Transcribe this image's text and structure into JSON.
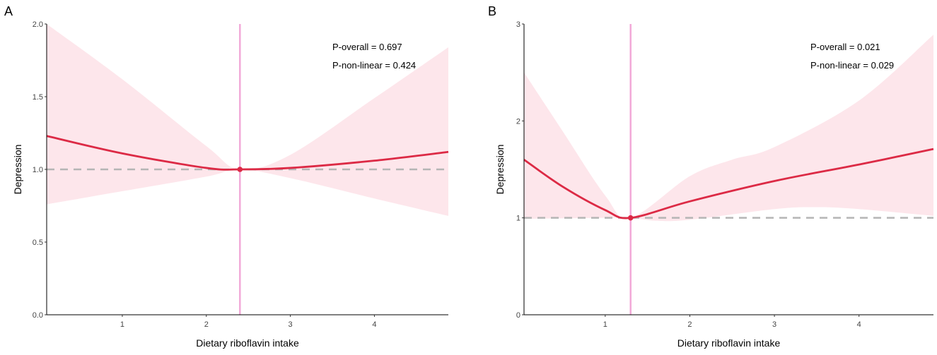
{
  "colors": {
    "curve": "#dc2a45",
    "band": "#fde6eb",
    "vline": "#f2a9d8",
    "ref": "#b5b5b5",
    "axis": "#000000"
  },
  "chart_data": [
    {
      "type": "line",
      "panel_label": "A",
      "xlabel": "Dietary riboflavin intake",
      "ylabel": "Depression",
      "xlim": [
        0.1,
        4.88
      ],
      "ylim": [
        0,
        2.0
      ],
      "xticks": [
        "1",
        "2",
        "3",
        "4"
      ],
      "xtick_values": [
        1,
        2,
        3,
        4
      ],
      "yticks": [
        "0.0",
        "0.5",
        "1.0",
        "1.5",
        "2.0"
      ],
      "ytick_values": [
        0,
        0.5,
        1.0,
        1.5,
        2.0
      ],
      "reference_y": 1.0,
      "reference_x": 2.4,
      "annotations": [
        "P-overall = 0.697",
        "P-non-linear = 0.424"
      ],
      "series": [
        {
          "name": "estimate",
          "x": [
            0.1,
            1.0,
            2.0,
            2.4,
            3.0,
            4.0,
            4.88
          ],
          "y": [
            1.23,
            1.11,
            1.01,
            1.0,
            1.01,
            1.06,
            1.12
          ]
        },
        {
          "name": "upper_ci",
          "x": [
            0.1,
            1.0,
            2.0,
            2.4,
            3.0,
            4.0,
            4.88
          ],
          "y": [
            2.0,
            1.62,
            1.16,
            1.0,
            1.1,
            1.49,
            1.84
          ]
        },
        {
          "name": "lower_ci",
          "x": [
            0.1,
            1.0,
            2.0,
            2.4,
            3.0,
            4.0,
            4.88
          ],
          "y": [
            0.76,
            0.85,
            0.95,
            1.0,
            0.94,
            0.8,
            0.68
          ]
        }
      ]
    },
    {
      "type": "line",
      "panel_label": "B",
      "xlabel": "Dietary riboflavin intake",
      "ylabel": "Depression",
      "xlim": [
        0.04,
        4.88
      ],
      "ylim": [
        0,
        3
      ],
      "xticks": [
        "1",
        "2",
        "3",
        "4"
      ],
      "xtick_values": [
        1,
        2,
        3,
        4
      ],
      "yticks": [
        "0",
        "1",
        "2",
        "3"
      ],
      "ytick_values": [
        0,
        1,
        2,
        3
      ],
      "reference_y": 1.0,
      "reference_x": 1.3,
      "annotations": [
        "P-overall = 0.021",
        "P-non-linear = 0.029"
      ],
      "series": [
        {
          "name": "estimate",
          "x": [
            0.04,
            0.5,
            1.0,
            1.3,
            2.0,
            3.0,
            4.0,
            4.88
          ],
          "y": [
            1.6,
            1.32,
            1.08,
            1.0,
            1.17,
            1.38,
            1.55,
            1.71
          ]
        },
        {
          "name": "upper_ci",
          "x": [
            0.04,
            0.5,
            1.0,
            1.3,
            2.0,
            2.5,
            3.0,
            4.0,
            4.88
          ],
          "y": [
            2.5,
            1.89,
            1.23,
            1.0,
            1.43,
            1.6,
            1.73,
            2.21,
            2.89
          ]
        },
        {
          "name": "lower_ci",
          "x": [
            0.04,
            1.0,
            1.3,
            1.6,
            2.0,
            3.0,
            3.5,
            4.0,
            4.88
          ],
          "y": [
            0.99,
            1.0,
            1.0,
            0.97,
            0.98,
            1.09,
            1.11,
            1.09,
            1.02
          ]
        }
      ]
    }
  ]
}
